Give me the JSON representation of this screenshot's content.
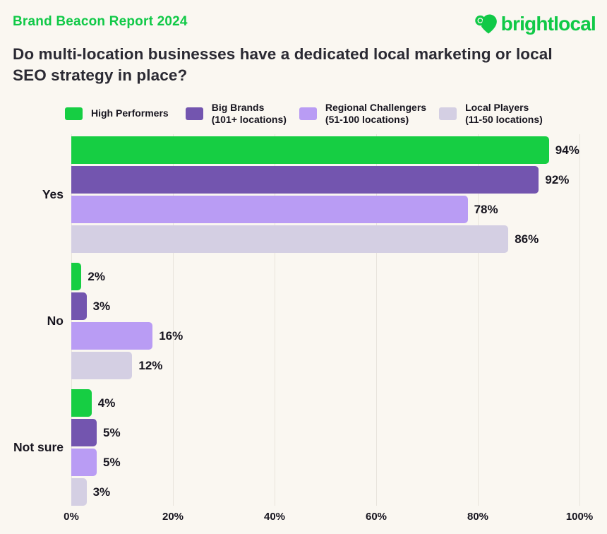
{
  "page": {
    "background": "#FAF7F1"
  },
  "colors": {
    "brand_green": "#10C947",
    "title_text": "#2B2A33",
    "dark_text": "#17151F",
    "gridline": "#E8E4DC"
  },
  "header": {
    "eyebrow": "Brand Beacon Report 2024",
    "logo_text": "brightlocal",
    "title_lines": [
      "Do multi-location businesses have a dedicated local marketing or local",
      "SEO strategy in place?"
    ]
  },
  "chart_data": {
    "type": "bar",
    "orientation": "horizontal",
    "title": "Do multi-location businesses have a dedicated local marketing or local SEO strategy in place?",
    "categories": [
      "Yes",
      "No",
      "Not sure"
    ],
    "series": [
      {
        "name": "High Performers",
        "legend_lines": [
          "High Performers"
        ],
        "color": "#16CE43",
        "values": [
          94,
          2,
          4
        ]
      },
      {
        "name": "Big Brands (101+ locations)",
        "legend_lines": [
          "Big Brands",
          "(101+ locations)"
        ],
        "color": "#7355AF",
        "values": [
          92,
          3,
          5
        ]
      },
      {
        "name": "Regional Challengers (51-100 locations)",
        "legend_lines": [
          "Regional Challengers",
          "(51-100 locations)"
        ],
        "color": "#B99CF4",
        "values": [
          78,
          16,
          5
        ]
      },
      {
        "name": "Local Players (11-50 locations)",
        "legend_lines": [
          "Local Players",
          "(11-50 locations)"
        ],
        "color": "#D4CFE3",
        "values": [
          86,
          12,
          3
        ]
      }
    ],
    "xlim": [
      0,
      100
    ],
    "x_ticks": [
      0,
      20,
      40,
      60,
      80,
      100
    ],
    "value_suffix": "%",
    "grid": "vertical",
    "legend_position": "top"
  }
}
